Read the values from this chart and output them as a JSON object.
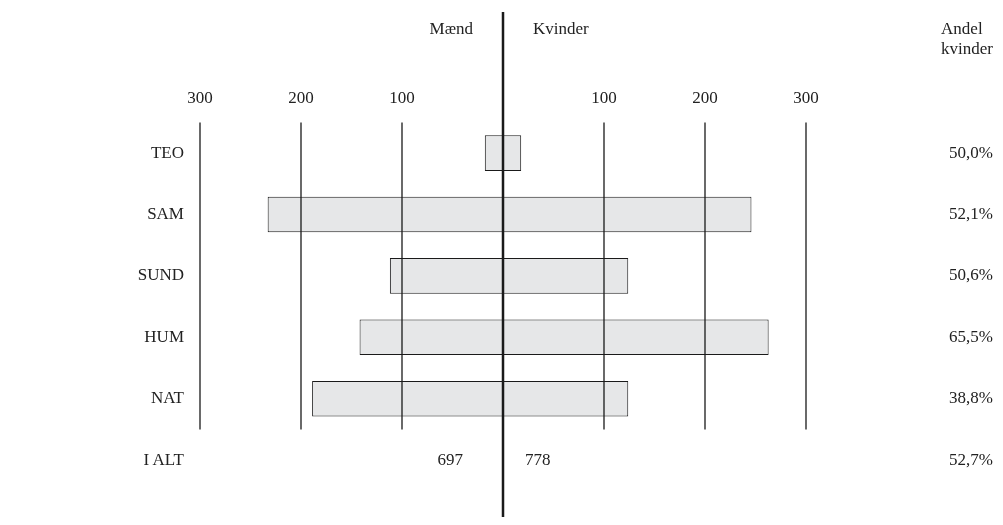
{
  "chart_data": {
    "type": "bar",
    "orientation": "horizontal",
    "stacked": true,
    "categories": [
      "TEO",
      "SAM",
      "SUND",
      "HUM",
      "NAT",
      "I ALT"
    ],
    "series": [
      {
        "color": "#e6e7e8",
        "values": [
          -18,
          -233,
          -112,
          -142,
          -189,
          null
        ],
        "value_labels": [
          null,
          null,
          null,
          null,
          null,
          "697"
        ]
      },
      {
        "color": "#e6e7e8",
        "values": [
          18,
          246,
          124,
          263,
          124,
          null
        ],
        "value_labels": [
          null,
          null,
          null,
          null,
          null,
          "778"
        ]
      }
    ],
    "xlim": [
      -300,
      300
    ],
    "xticks": [
      {
        "value": -300,
        "label": "300"
      },
      {
        "value": -200,
        "label": "200"
      },
      {
        "value": -100,
        "label": "100"
      },
      {
        "value": 100,
        "label": "100"
      },
      {
        "value": 200,
        "label": "200"
      },
      {
        "value": 300,
        "label": "300"
      }
    ],
    "grid": "x",
    "legend": false,
    "ref_lines": [
      {
        "axis": "x",
        "value": 0,
        "label": null,
        "color": "#1a1a1a"
      }
    ],
    "annotations": [
      "Mænd",
      "Kvinder",
      "Andel kvinder",
      "50,0%",
      "52,1%",
      "50,6%",
      "65,5%",
      "38,8%",
      "52,7%"
    ]
  }
}
